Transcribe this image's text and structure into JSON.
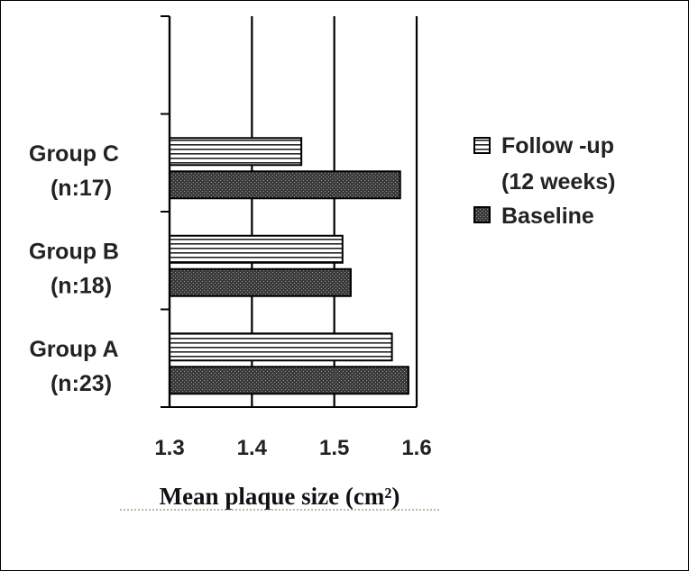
{
  "chart_data": {
    "type": "bar",
    "orientation": "horizontal",
    "xlabel": "Mean plaque size (cm²)",
    "xlim": [
      1.3,
      1.6
    ],
    "xticks": [
      "1.3",
      "1.4",
      "1.5",
      "1.6"
    ],
    "categories": [
      {
        "name": "Group A",
        "n": "(n:23)"
      },
      {
        "name": "Group B",
        "n": "(n:18)"
      },
      {
        "name": "Group C",
        "n": "(n:17)"
      }
    ],
    "series": [
      {
        "name": "Follow -up",
        "name_line2": "(12 weeks)",
        "pattern": "horizontal-stripes",
        "values": [
          1.57,
          1.51,
          1.46
        ]
      },
      {
        "name": "Baseline",
        "pattern": "dark-stipple",
        "values": [
          1.59,
          1.52,
          1.58
        ]
      }
    ],
    "grid": "vertical",
    "legend": "right"
  }
}
